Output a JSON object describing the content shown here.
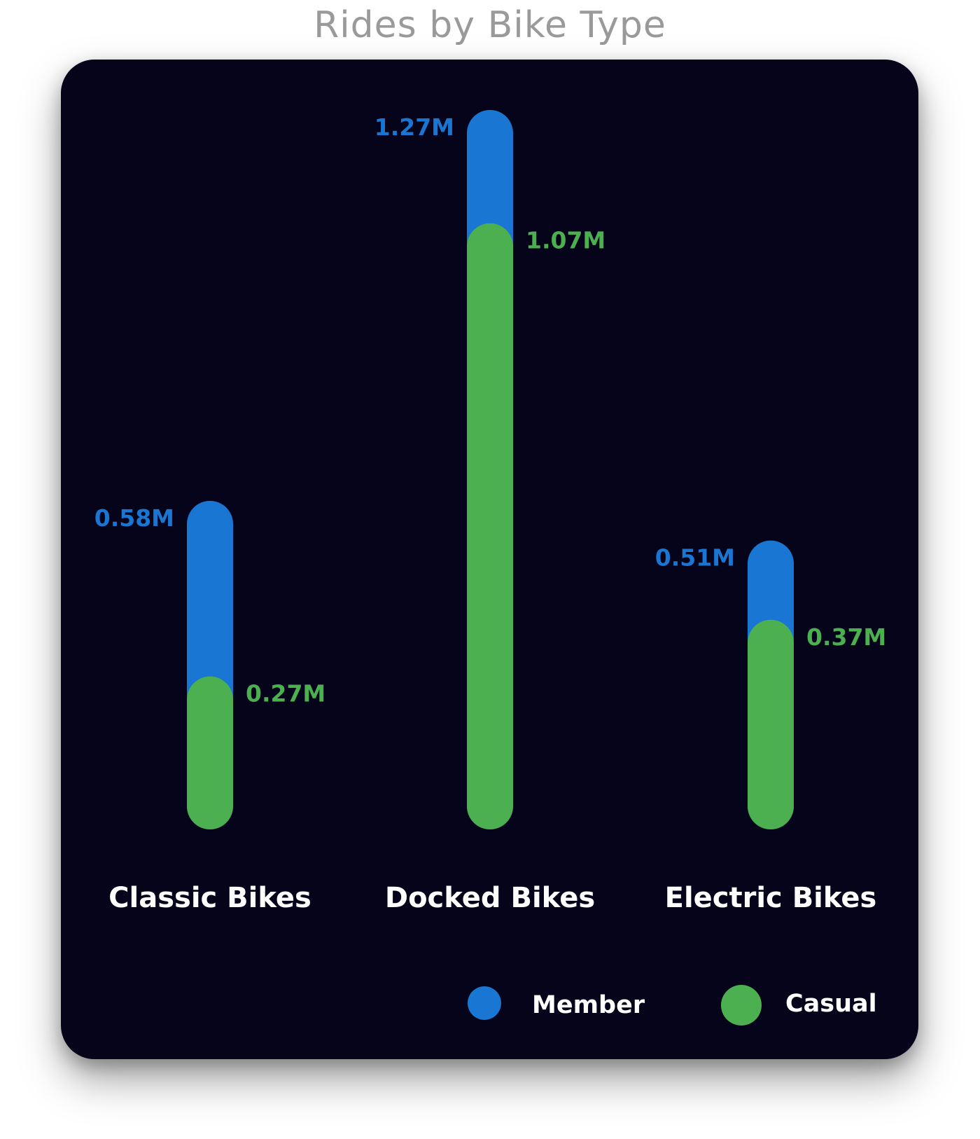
{
  "chart_data": {
    "type": "bar",
    "title": "Rides by Bike Type",
    "categories": [
      "Classic Bikes",
      "Docked Bikes",
      "Electric Bikes"
    ],
    "series": [
      {
        "name": "Member",
        "color": "#1976d2",
        "values": [
          0.58,
          1.27,
          0.51
        ],
        "labels": [
          "0.58M",
          "1.27M",
          "0.51M"
        ]
      },
      {
        "name": "Casual",
        "color": "#4caf50",
        "values": [
          0.27,
          1.07,
          0.37
        ],
        "labels": [
          "0.27M",
          "1.07M",
          "0.37M"
        ]
      }
    ],
    "unit": "M",
    "background": "#06041a",
    "legend_position": "bottom-right",
    "grid": false
  }
}
